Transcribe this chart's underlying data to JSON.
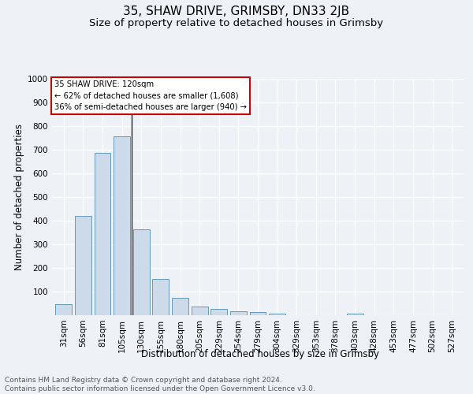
{
  "title1": "35, SHAW DRIVE, GRIMSBY, DN33 2JB",
  "title2": "Size of property relative to detached houses in Grimsby",
  "xlabel": "Distribution of detached houses by size in Grimsby",
  "ylabel": "Number of detached properties",
  "footnote": "Contains HM Land Registry data © Crown copyright and database right 2024.\nContains public sector information licensed under the Open Government Licence v3.0.",
  "bar_labels": [
    "31sqm",
    "56sqm",
    "81sqm",
    "105sqm",
    "130sqm",
    "155sqm",
    "180sqm",
    "205sqm",
    "229sqm",
    "254sqm",
    "279sqm",
    "304sqm",
    "329sqm",
    "353sqm",
    "378sqm",
    "403sqm",
    "428sqm",
    "453sqm",
    "477sqm",
    "502sqm",
    "527sqm"
  ],
  "bar_values": [
    47,
    420,
    688,
    756,
    362,
    152,
    75,
    37,
    27,
    18,
    13,
    7,
    0,
    0,
    0,
    8,
    0,
    0,
    0,
    0,
    0
  ],
  "bar_color": "#ccdaea",
  "bar_edge_color": "#6699bb",
  "ylim": [
    0,
    1000
  ],
  "yticks": [
    0,
    100,
    200,
    300,
    400,
    500,
    600,
    700,
    800,
    900,
    1000
  ],
  "annotation_title": "35 SHAW DRIVE: 120sqm",
  "annotation_line1": "← 62% of detached houses are smaller (1,608)",
  "annotation_line2": "36% of semi-detached houses are larger (940) →",
  "annotation_box_facecolor": "#ffffff",
  "annotation_box_edgecolor": "#cc0000",
  "vline_x_index": 3.5,
  "background_color": "#eef2f7",
  "grid_color": "#ffffff",
  "title1_fontsize": 11,
  "title2_fontsize": 9.5,
  "axis_label_fontsize": 8.5,
  "tick_fontsize": 7.5,
  "footnote_fontsize": 6.5
}
